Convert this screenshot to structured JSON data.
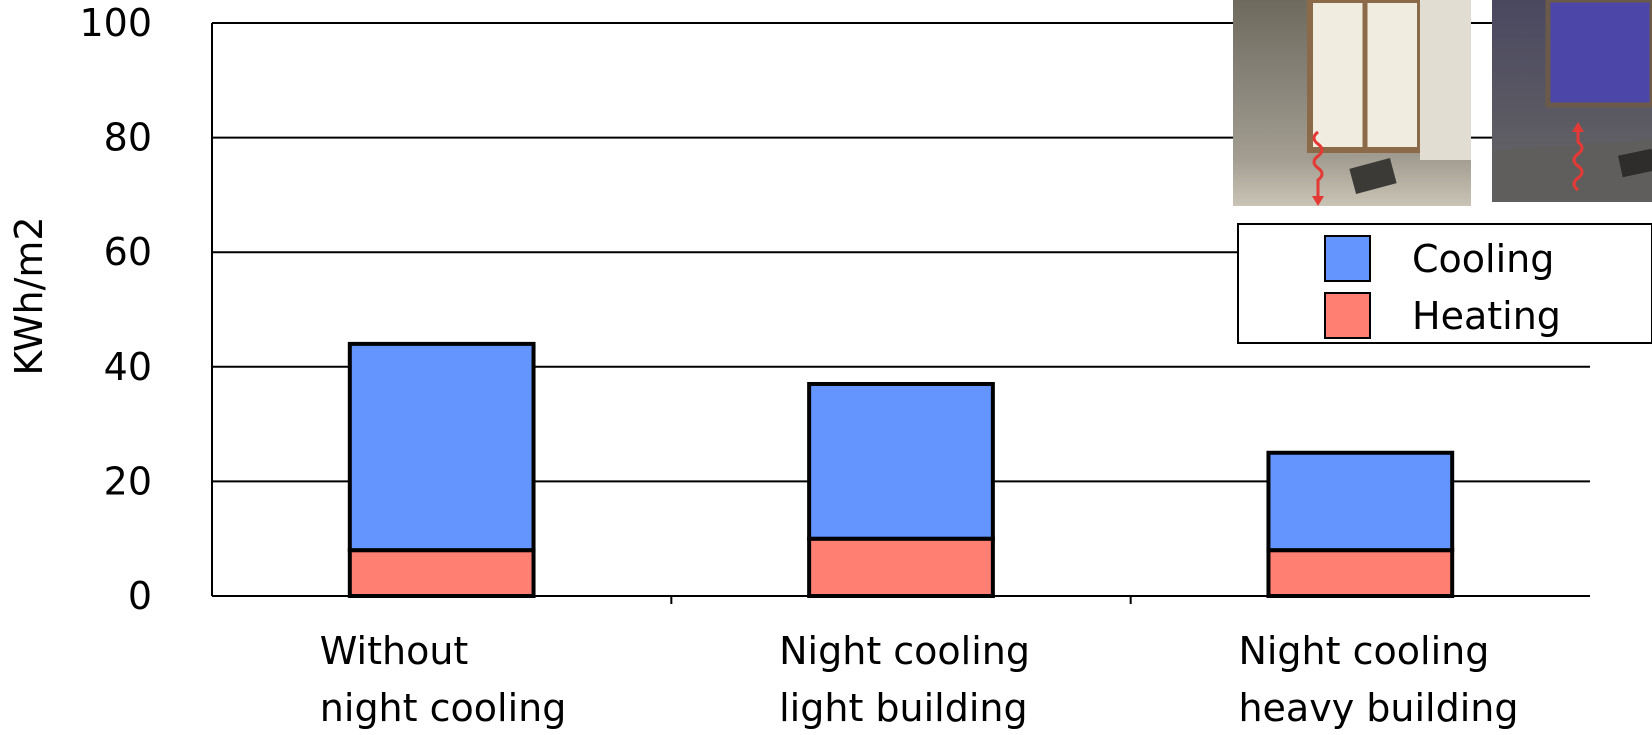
{
  "chart_data": {
    "type": "bar",
    "stacked": true,
    "categories": [
      [
        "Without",
        "night cooling"
      ],
      [
        "Night cooling",
        "light building"
      ],
      [
        "Night cooling",
        "heavy building"
      ]
    ],
    "series": [
      {
        "name": "Heating",
        "values": [
          8,
          10,
          8
        ],
        "color": "#ff7f72"
      },
      {
        "name": "Cooling",
        "values": [
          36,
          27,
          17
        ],
        "color": "#6495ff"
      }
    ],
    "legend_order": [
      "Cooling",
      "Heating"
    ],
    "legend_position": "top-right",
    "ylabel": "KWh/m2",
    "xlabel": "",
    "ylim": [
      0,
      100
    ],
    "yticks": [
      0,
      20,
      40,
      60,
      80,
      100
    ],
    "grid": true,
    "photos": [
      {
        "name": "room-daytime-photo",
        "arrow": "down",
        "arrow_color": "#e53935"
      },
      {
        "name": "room-night-photo",
        "arrow": "up",
        "arrow_color": "#e53935"
      }
    ]
  }
}
